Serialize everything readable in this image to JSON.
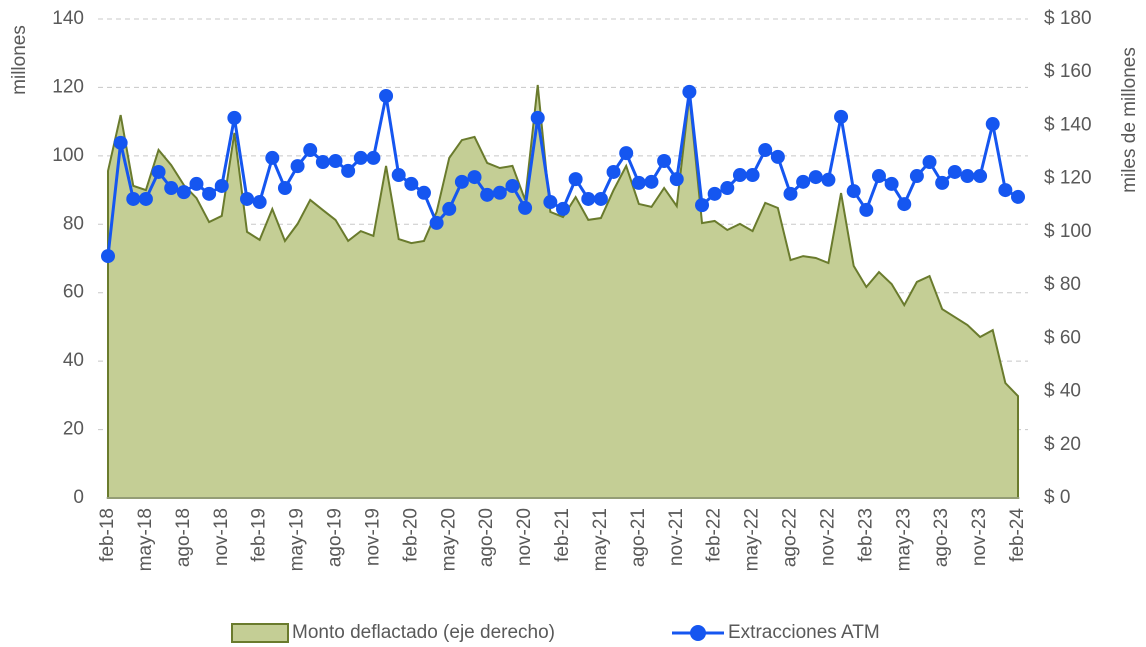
{
  "chart_data": {
    "type": "combo",
    "y_label": "millones",
    "y2_label": "miles de millones",
    "categories": [
      "feb-18",
      null,
      null,
      "may-18",
      null,
      null,
      "ago-18",
      null,
      null,
      "nov-18",
      null,
      null,
      "feb-19",
      null,
      null,
      "may-19",
      null,
      null,
      "ago-19",
      null,
      null,
      "nov-19",
      null,
      null,
      "feb-20",
      null,
      null,
      "may-20",
      null,
      null,
      "ago-20",
      null,
      null,
      "nov-20",
      null,
      null,
      "feb-21",
      null,
      null,
      "may-21",
      null,
      null,
      "ago-21",
      null,
      null,
      "nov-21",
      null,
      null,
      "feb-22",
      null,
      null,
      "may-22",
      null,
      null,
      "ago-22",
      null,
      null,
      "nov-22",
      null,
      null,
      "feb-23",
      null,
      null,
      "may-23",
      null,
      null,
      "ago-23",
      null,
      null,
      "nov-23",
      null,
      null,
      "feb-24"
    ],
    "series": [
      {
        "name": "Monto deflactado (eje derecho)",
        "type": "area",
        "axis": "y2",
        "color": "#c4ce95",
        "edge_color": "#6a7b2d",
        "values": [
          122.9,
          143.9,
          117.3,
          115.7,
          130.8,
          125.1,
          117.6,
          112.7,
          103.7,
          106.0,
          137.2,
          100.0,
          97.0,
          108.6,
          96.6,
          103.0,
          112.0,
          108.2,
          104.5,
          96.6,
          100.3,
          98.5,
          124.8,
          97.3,
          95.8,
          96.6,
          107.5,
          127.8,
          134.5,
          135.7,
          125.9,
          124.0,
          124.8,
          112.0,
          155.2,
          107.5,
          105.6,
          113.1,
          104.5,
          105.2,
          115.7,
          124.8,
          110.5,
          109.4,
          116.5,
          109.7,
          151.1,
          103.3,
          104.1,
          100.7,
          103.0,
          100.3,
          110.9,
          109.0,
          89.4,
          90.9,
          90.2,
          88.3,
          114.6,
          87.2,
          79.3,
          84.9,
          80.4,
          72.5,
          81.2,
          83.4,
          71.0,
          68.0,
          65.0,
          60.5,
          63.1,
          43.2,
          38.3
        ]
      },
      {
        "name": "Extracciones ATM",
        "type": "line",
        "axis": "y",
        "color": "#1556f0",
        "values": [
          70.7,
          103.8,
          87.4,
          87.4,
          95.3,
          90.6,
          89.4,
          91.8,
          88.9,
          91.2,
          111.1,
          87.4,
          86.5,
          99.4,
          90.6,
          97.0,
          101.7,
          98.2,
          98.5,
          95.6,
          99.4,
          99.4,
          117.5,
          94.4,
          91.8,
          89.2,
          80.4,
          84.5,
          92.4,
          93.8,
          88.6,
          89.2,
          91.2,
          84.8,
          111.1,
          86.5,
          84.5,
          93.2,
          87.4,
          87.4,
          95.3,
          100.8,
          92.1,
          92.4,
          98.5,
          93.2,
          118.7,
          85.6,
          88.9,
          90.6,
          94.4,
          94.4,
          101.7,
          99.7,
          88.9,
          92.4,
          93.8,
          93.0,
          111.4,
          89.7,
          84.2,
          94.1,
          91.8,
          85.9,
          94.1,
          98.2,
          92.1,
          95.3,
          94.1,
          94.1,
          109.3,
          90.0,
          88.0
        ]
      }
    ],
    "ylim": [
      0,
      140
    ],
    "yticks": [
      0,
      20,
      40,
      60,
      80,
      100,
      120,
      140
    ],
    "y2lim": [
      0,
      180
    ],
    "y2ticks": [
      {
        "value": 0,
        "label": "$ 0"
      },
      {
        "value": 20,
        "label": "$ 20"
      },
      {
        "value": 40,
        "label": "$ 40"
      },
      {
        "value": 60,
        "label": "$ 60"
      },
      {
        "value": 80,
        "label": "$ 80"
      },
      {
        "value": 100,
        "label": "$ 100"
      },
      {
        "value": 120,
        "label": "$ 120"
      },
      {
        "value": 140,
        "label": "$ 140"
      },
      {
        "value": 160,
        "label": "$ 160"
      },
      {
        "value": 180,
        "label": "$ 180"
      }
    ],
    "grid": true,
    "legend": "bottom"
  }
}
